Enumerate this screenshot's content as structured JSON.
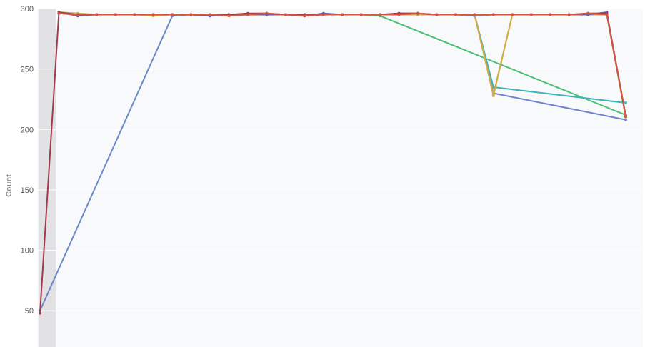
{
  "chart_data": {
    "type": "line",
    "ylabel": "Count",
    "xlabel": "",
    "ylim": [
      20,
      300
    ],
    "yticks": [
      50,
      100,
      150,
      200,
      250,
      300
    ],
    "x_count": 31,
    "grid": "horizontal",
    "legend": "none",
    "highlight_band_index": 0,
    "colors": {
      "plot_background": "#f8f9fb",
      "band": "#e2e2e4",
      "grid": "#ffffff"
    },
    "series": [
      {
        "color": "#6a8ac4",
        "points": [
          [
            0,
            50
          ],
          [
            7,
            294
          ],
          [
            8,
            295
          ],
          [
            9,
            294
          ],
          [
            10,
            295
          ],
          [
            11,
            295
          ],
          [
            12,
            295
          ],
          [
            13,
            295
          ],
          [
            14,
            295
          ],
          [
            15,
            295
          ],
          [
            16,
            295
          ],
          [
            17,
            295
          ],
          [
            18,
            295
          ],
          [
            19,
            295
          ],
          [
            20,
            295
          ],
          [
            21,
            295
          ],
          [
            22,
            295
          ],
          [
            23,
            294
          ],
          [
            24,
            295
          ],
          [
            25,
            295
          ],
          [
            26,
            295
          ],
          [
            27,
            295
          ],
          [
            28,
            295
          ],
          [
            29,
            295
          ],
          [
            30,
            295
          ]
        ]
      },
      {
        "color": "#4bbf73",
        "points": [
          [
            1,
            296
          ],
          [
            2,
            295
          ],
          [
            3,
            295
          ],
          [
            4,
            295
          ],
          [
            5,
            295
          ],
          [
            6,
            295
          ],
          [
            7,
            295
          ],
          [
            8,
            295
          ],
          [
            9,
            295
          ],
          [
            10,
            295
          ],
          [
            11,
            295
          ],
          [
            12,
            295
          ],
          [
            13,
            295
          ],
          [
            14,
            295
          ],
          [
            15,
            295
          ],
          [
            16,
            295
          ],
          [
            17,
            295
          ],
          [
            18,
            294
          ],
          [
            31,
            212
          ]
        ]
      },
      {
        "color": "#6f82d0",
        "points": [
          [
            1,
            296
          ],
          [
            2,
            295
          ],
          [
            3,
            295
          ],
          [
            4,
            295
          ],
          [
            5,
            295
          ],
          [
            6,
            295
          ],
          [
            7,
            295
          ],
          [
            8,
            295
          ],
          [
            9,
            295
          ],
          [
            10,
            295
          ],
          [
            11,
            295
          ],
          [
            12,
            295
          ],
          [
            13,
            295
          ],
          [
            14,
            295
          ],
          [
            15,
            295
          ],
          [
            16,
            295
          ],
          [
            17,
            295
          ],
          [
            18,
            295
          ],
          [
            19,
            295
          ],
          [
            20,
            295
          ],
          [
            21,
            295
          ],
          [
            22,
            295
          ],
          [
            23,
            295
          ],
          [
            24,
            230
          ],
          [
            31,
            208
          ]
        ]
      },
      {
        "color": "#3bb3b9",
        "points": [
          [
            1,
            296
          ],
          [
            2,
            295
          ],
          [
            3,
            295
          ],
          [
            4,
            295
          ],
          [
            5,
            295
          ],
          [
            6,
            295
          ],
          [
            7,
            295
          ],
          [
            8,
            295
          ],
          [
            9,
            295
          ],
          [
            10,
            295
          ],
          [
            11,
            295
          ],
          [
            12,
            295
          ],
          [
            13,
            295
          ],
          [
            14,
            295
          ],
          [
            15,
            295
          ],
          [
            16,
            295
          ],
          [
            17,
            295
          ],
          [
            18,
            295
          ],
          [
            19,
            295
          ],
          [
            20,
            295
          ],
          [
            21,
            295
          ],
          [
            22,
            295
          ],
          [
            23,
            295
          ],
          [
            24,
            235
          ],
          [
            31,
            222
          ]
        ]
      },
      {
        "color": "#c9b34a",
        "points": [
          [
            1,
            297
          ],
          [
            2,
            296
          ],
          [
            3,
            295
          ],
          [
            4,
            295
          ],
          [
            5,
            295
          ],
          [
            6,
            294
          ],
          [
            7,
            295
          ],
          [
            8,
            295
          ],
          [
            9,
            295
          ],
          [
            10,
            295
          ],
          [
            11,
            295
          ],
          [
            12,
            295
          ],
          [
            13,
            295
          ],
          [
            14,
            295
          ],
          [
            15,
            295
          ],
          [
            16,
            295
          ],
          [
            17,
            295
          ],
          [
            18,
            295
          ],
          [
            19,
            295
          ],
          [
            20,
            295
          ],
          [
            21,
            295
          ],
          [
            22,
            295
          ],
          [
            23,
            295
          ],
          [
            24,
            228
          ],
          [
            25,
            295
          ],
          [
            26,
            295
          ],
          [
            27,
            295
          ],
          [
            28,
            295
          ],
          [
            29,
            295
          ],
          [
            30,
            295
          ],
          [
            31,
            210
          ]
        ]
      },
      {
        "color": "#d2aa46",
        "points": [
          [
            1,
            296
          ],
          [
            2,
            295
          ],
          [
            3,
            295
          ],
          [
            4,
            295
          ],
          [
            5,
            295
          ],
          [
            6,
            295
          ],
          [
            7,
            295
          ],
          [
            8,
            295
          ],
          [
            9,
            295
          ],
          [
            10,
            295
          ],
          [
            11,
            295
          ],
          [
            12,
            295
          ],
          [
            13,
            295
          ],
          [
            14,
            295
          ],
          [
            15,
            295
          ],
          [
            16,
            295
          ],
          [
            17,
            295
          ],
          [
            18,
            295
          ],
          [
            19,
            295
          ],
          [
            20,
            295
          ],
          [
            21,
            295
          ],
          [
            22,
            295
          ],
          [
            23,
            295
          ],
          [
            24,
            229
          ],
          [
            25,
            295
          ],
          [
            26,
            295
          ],
          [
            27,
            295
          ],
          [
            28,
            295
          ],
          [
            29,
            295
          ],
          [
            30,
            296
          ],
          [
            31,
            211
          ]
        ]
      },
      {
        "color": "#5b61b0",
        "points": [
          [
            1,
            297
          ],
          [
            2,
            294
          ],
          [
            3,
            295
          ],
          [
            4,
            295
          ],
          [
            5,
            295
          ],
          [
            6,
            295
          ],
          [
            7,
            295
          ],
          [
            8,
            295
          ],
          [
            9,
            294
          ],
          [
            10,
            295
          ],
          [
            11,
            295
          ],
          [
            12,
            295
          ],
          [
            13,
            295
          ],
          [
            14,
            294
          ],
          [
            15,
            296
          ],
          [
            16,
            295
          ],
          [
            17,
            295
          ],
          [
            18,
            295
          ],
          [
            19,
            296
          ],
          [
            20,
            296
          ],
          [
            21,
            295
          ],
          [
            22,
            295
          ],
          [
            23,
            295
          ],
          [
            24,
            295
          ],
          [
            25,
            295
          ],
          [
            26,
            295
          ],
          [
            27,
            295
          ],
          [
            28,
            295
          ],
          [
            29,
            295
          ],
          [
            30,
            297
          ],
          [
            31,
            211
          ]
        ]
      },
      {
        "color": "#a33a4a",
        "points": [
          [
            0,
            48
          ],
          [
            1,
            297
          ],
          [
            2,
            295
          ],
          [
            3,
            295
          ],
          [
            4,
            295
          ],
          [
            5,
            295
          ],
          [
            6,
            295
          ],
          [
            7,
            295
          ],
          [
            8,
            295
          ],
          [
            9,
            295
          ],
          [
            10,
            295
          ],
          [
            11,
            296
          ],
          [
            12,
            296
          ],
          [
            13,
            295
          ],
          [
            14,
            295
          ],
          [
            15,
            295
          ],
          [
            16,
            295
          ],
          [
            17,
            295
          ],
          [
            18,
            295
          ],
          [
            19,
            296
          ],
          [
            20,
            296
          ],
          [
            21,
            295
          ],
          [
            22,
            295
          ],
          [
            23,
            295
          ],
          [
            24,
            295
          ],
          [
            25,
            295
          ],
          [
            26,
            295
          ],
          [
            27,
            295
          ],
          [
            28,
            295
          ],
          [
            29,
            296
          ],
          [
            30,
            296
          ],
          [
            31,
            211
          ]
        ]
      },
      {
        "color": "#d4553e",
        "points": [
          [
            1,
            296
          ],
          [
            2,
            295
          ],
          [
            3,
            295
          ],
          [
            4,
            295
          ],
          [
            5,
            295
          ],
          [
            6,
            295
          ],
          [
            7,
            295
          ],
          [
            8,
            295
          ],
          [
            9,
            295
          ],
          [
            10,
            294
          ],
          [
            11,
            295
          ],
          [
            12,
            296
          ],
          [
            13,
            295
          ],
          [
            14,
            294
          ],
          [
            15,
            295
          ],
          [
            16,
            295
          ],
          [
            17,
            295
          ],
          [
            18,
            295
          ],
          [
            19,
            295
          ],
          [
            20,
            296
          ],
          [
            21,
            295
          ],
          [
            22,
            295
          ],
          [
            23,
            295
          ],
          [
            24,
            295
          ],
          [
            25,
            295
          ],
          [
            26,
            295
          ],
          [
            27,
            295
          ],
          [
            28,
            295
          ],
          [
            29,
            296
          ],
          [
            30,
            295
          ],
          [
            31,
            211
          ]
        ]
      }
    ]
  }
}
